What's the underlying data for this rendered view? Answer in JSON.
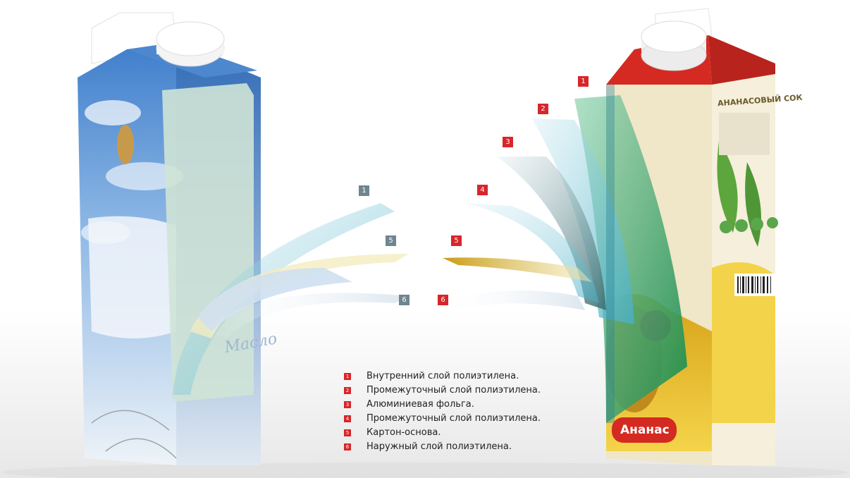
{
  "markers_left": [
    "1",
    "5",
    "6"
  ],
  "markers_right": [
    "1",
    "2",
    "3",
    "4",
    "5",
    "6"
  ],
  "legend": [
    {
      "num": "1",
      "text": "Внутренний слой полиэтилена."
    },
    {
      "num": "2",
      "text": "Промежуточный слой полиэтилена."
    },
    {
      "num": "3",
      "text": "Алюминиевая фольга."
    },
    {
      "num": "4",
      "text": "Промежуточный слой полиэтилена."
    },
    {
      "num": "5",
      "text": "Картон-основа."
    },
    {
      "num": "6",
      "text": "Наружный слой полиэтилена."
    }
  ],
  "right_package": {
    "title": "АНАНАСОВЫЙ СОК",
    "label": "Ананас"
  },
  "colors": {
    "marker_red": "#d7262b",
    "marker_gray": "#6f8590",
    "carton_red": "#d42a22",
    "carton_blue": "#5b8fcf"
  }
}
